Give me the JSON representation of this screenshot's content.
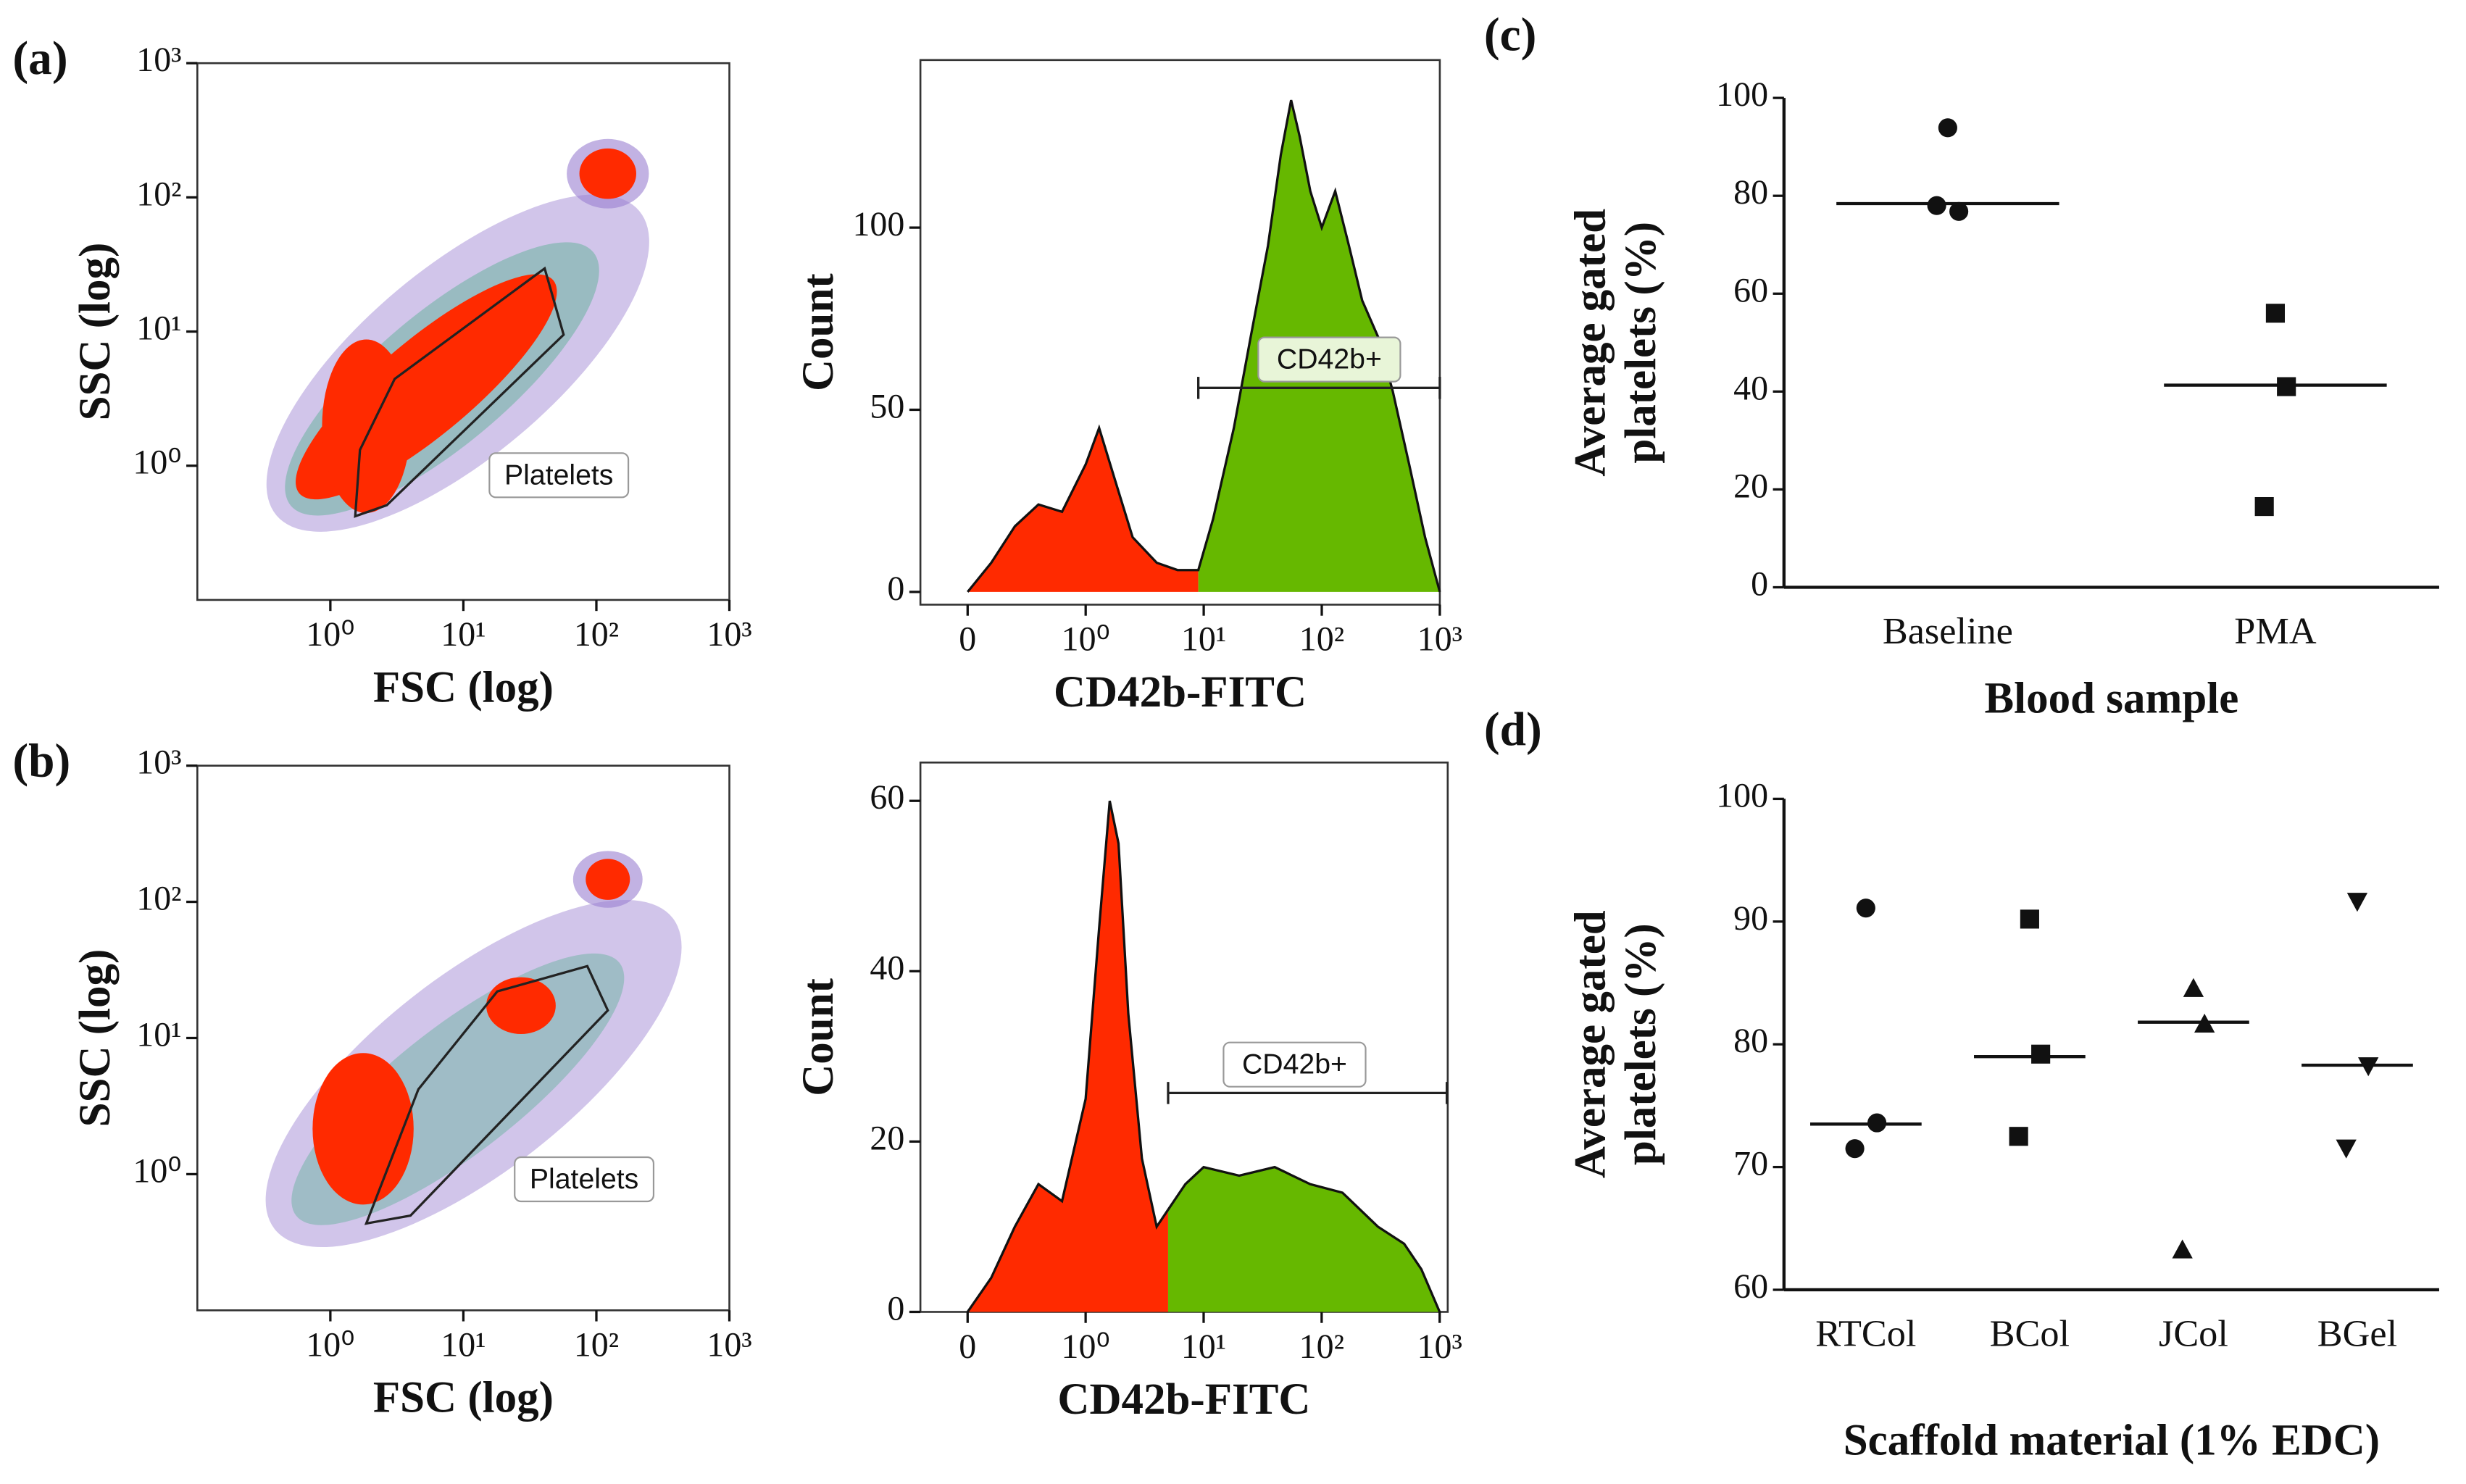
{
  "chart_data": [
    {
      "type": "density-scatter",
      "panel": "(a)",
      "xlabel": "FSC (log)",
      "ylabel": "SSC (log)",
      "xscale": "log",
      "yscale": "log",
      "xlim": [
        0.1,
        1000
      ],
      "ylim": [
        0.1,
        1000
      ],
      "xticks": [
        {
          "value": 1,
          "label": "10⁰"
        },
        {
          "value": 10,
          "label": "10¹"
        },
        {
          "value": 100,
          "label": "10²"
        },
        {
          "value": 1000,
          "label": "10³"
        }
      ],
      "yticks": [
        {
          "value": 1,
          "label": "10⁰"
        },
        {
          "value": 10,
          "label": "10¹"
        },
        {
          "value": 100,
          "label": "10²"
        },
        {
          "value": 1000,
          "label": "10³"
        }
      ],
      "gate": {
        "label": "Platelets"
      }
    },
    {
      "type": "histogram",
      "xlabel": "CD42b-FITC",
      "ylabel": "Count",
      "xscale": "biexponential",
      "xlim": [
        -0.4,
        1000
      ],
      "ylim": [
        -3.5,
        146
      ],
      "xticks": [
        0,
        {
          "value": 1,
          "label": "10⁰"
        },
        {
          "value": 10,
          "label": "10¹"
        },
        {
          "value": 100,
          "label": "10²"
        },
        {
          "value": 1000,
          "label": "10³"
        }
      ],
      "yticks": [
        0,
        50,
        100
      ],
      "x": [
        0,
        0.2,
        0.4,
        0.6,
        0.8,
        1,
        1.3,
        1.8,
        2.5,
        4,
        6,
        9,
        12,
        18,
        25,
        35,
        45,
        55,
        65,
        80,
        100,
        130,
        170,
        220,
        300,
        400,
        550,
        750,
        1000
      ],
      "values": [
        0,
        8,
        18,
        24,
        22,
        35,
        45,
        30,
        15,
        8,
        6,
        6,
        20,
        45,
        70,
        95,
        120,
        135,
        125,
        110,
        100,
        110,
        95,
        80,
        70,
        55,
        35,
        15,
        0
      ],
      "colors": [
        "#ff2a00",
        "#66b800"
      ],
      "gate": {
        "label": "CD42b+",
        "x": [
          9,
          1000
        ],
        "y": 56
      }
    },
    {
      "type": "density-scatter",
      "panel": "(b)",
      "xlabel": "FSC (log)",
      "ylabel": "SSC (log)",
      "xscale": "log",
      "yscale": "log",
      "xlim": [
        0.1,
        1000
      ],
      "ylim": [
        0.1,
        1000
      ],
      "xticks": [
        {
          "value": 1,
          "label": "10⁰"
        },
        {
          "value": 10,
          "label": "10¹"
        },
        {
          "value": 100,
          "label": "10²"
        },
        {
          "value": 1000,
          "label": "10³"
        }
      ],
      "yticks": [
        {
          "value": 1,
          "label": "10⁰"
        },
        {
          "value": 10,
          "label": "10¹"
        },
        {
          "value": 100,
          "label": "10²"
        },
        {
          "value": 1000,
          "label": "10³"
        }
      ],
      "gate": {
        "label": "Platelets"
      }
    },
    {
      "type": "histogram",
      "xlabel": "CD42b-FITC",
      "ylabel": "Count",
      "xscale": "biexponential",
      "xlim": [
        -0.4,
        1170
      ],
      "ylim": [
        0,
        64.5
      ],
      "xticks": [
        0,
        {
          "value": 1,
          "label": "10⁰"
        },
        {
          "value": 10,
          "label": "10¹"
        },
        {
          "value": 100,
          "label": "10²"
        },
        {
          "value": 1000,
          "label": "10³"
        }
      ],
      "yticks": [
        0,
        20,
        40,
        60
      ],
      "x": [
        0,
        0.2,
        0.4,
        0.6,
        0.8,
        1,
        1.3,
        1.6,
        1.9,
        2.3,
        3,
        4,
        5,
        7,
        10,
        20,
        40,
        80,
        150,
        300,
        500,
        700,
        1000
      ],
      "values": [
        0,
        4,
        10,
        15,
        13,
        25,
        45,
        60,
        55,
        35,
        18,
        10,
        12,
        15,
        17,
        16,
        17,
        15,
        14,
        10,
        8,
        5,
        0
      ],
      "colors": [
        "#ff2a00",
        "#66b800"
      ],
      "gate": {
        "label": "CD42b+",
        "x": [
          5,
          1150
        ],
        "y": 25.7
      }
    },
    {
      "type": "dot",
      "panel": "(c)",
      "xlabel": "Blood sample",
      "ylabel": [
        "Average gated",
        "platelets (%)"
      ],
      "categories": [
        "Baseline",
        "PMA"
      ],
      "values": [
        [
          93.9,
          76.8,
          78
        ],
        [
          56,
          41,
          16.5
        ]
      ],
      "means": [
        78.4,
        41.3
      ],
      "markers": [
        "circle",
        "square"
      ],
      "ylim": [
        0,
        100
      ],
      "yticks": [
        0,
        20,
        40,
        60,
        80,
        100
      ]
    },
    {
      "type": "dot",
      "panel": "(d)",
      "xlabel": "Scaffold material (1% EDC)",
      "ylabel": [
        "Average gated",
        "platelets (%)"
      ],
      "categories": [
        "RTCol",
        "BCol",
        "JCol",
        "BGel"
      ],
      "values": [
        [
          91.1,
          73.6,
          71.5
        ],
        [
          90.2,
          79.2,
          72.5
        ],
        [
          84.5,
          81.6,
          63.2
        ],
        [
          91.7,
          78.3,
          71.6
        ]
      ],
      "means": [
        73.5,
        79,
        81.8,
        78.3
      ],
      "markers": [
        "circle",
        "square",
        "triangle",
        "triangle-down"
      ],
      "ylim": [
        60,
        100
      ],
      "yticks": [
        60,
        70,
        80,
        90,
        100
      ]
    }
  ]
}
